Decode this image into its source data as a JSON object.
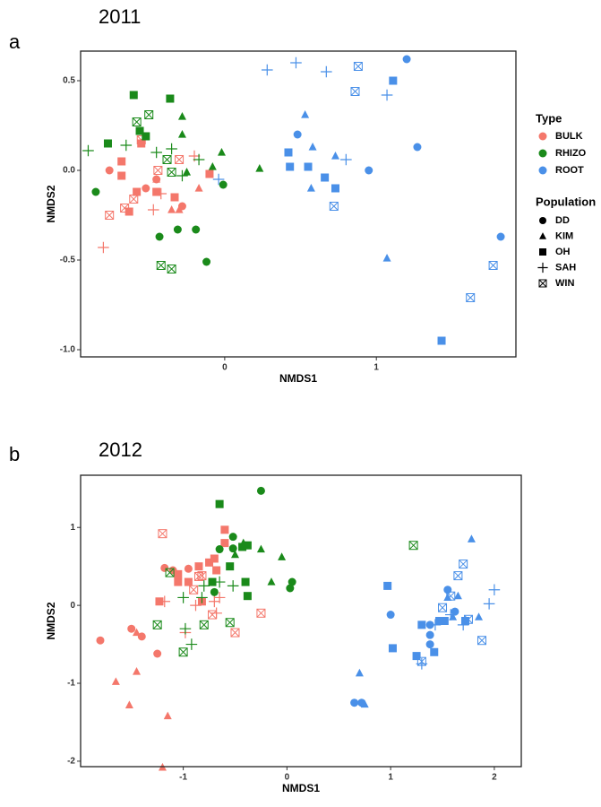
{
  "chart_data": [
    {
      "type": "scatter",
      "panel_label": "a",
      "title": "2011",
      "xlabel": "NMDS1",
      "ylabel": "NMDS2",
      "xlim": [
        -0.95,
        1.92
      ],
      "ylim": [
        -1.04,
        0.665
      ],
      "xticks": [
        0,
        1
      ],
      "yticks": [
        0.5,
        {
          "value": 0,
          "label": "0.0"
        },
        -0.5,
        {
          "value": -1,
          "label": "-1.0"
        }
      ],
      "legend_type": {
        "title": "Type",
        "items": [
          {
            "name": "BULK",
            "color": "#f4776b"
          },
          {
            "name": "RHIZO",
            "color": "#1a8a1a"
          },
          {
            "name": "ROOT",
            "color": "#4a90e8"
          }
        ]
      },
      "legend_population": {
        "title": "Population",
        "items": [
          {
            "name": "DD",
            "marker": "circle"
          },
          {
            "name": "KIM",
            "marker": "triangle"
          },
          {
            "name": "OH",
            "marker": "square"
          },
          {
            "name": "SAH",
            "marker": "plus"
          },
          {
            "name": "WIN",
            "marker": "boxx"
          }
        ]
      },
      "series": [
        {
          "type": "BULK",
          "population": "DD",
          "color": "#f4776b",
          "marker": "circle",
          "x": [
            -0.76,
            -0.45,
            -0.28,
            -0.52
          ],
          "y": [
            0.0,
            -0.05,
            -0.2,
            -0.1
          ]
        },
        {
          "type": "BULK",
          "population": "KIM",
          "color": "#f4776b",
          "marker": "triangle",
          "x": [
            -0.35,
            -0.3,
            -0.17,
            -0.45
          ],
          "y": [
            -0.22,
            -0.22,
            -0.1,
            -0.05
          ]
        },
        {
          "type": "BULK",
          "population": "OH",
          "color": "#f4776b",
          "marker": "square",
          "x": [
            -0.68,
            -0.68,
            -0.63,
            -0.55,
            -0.58,
            -0.45,
            -0.33,
            -0.1
          ],
          "y": [
            0.05,
            -0.03,
            -0.23,
            0.15,
            -0.12,
            -0.12,
            -0.15,
            -0.02
          ]
        },
        {
          "type": "BULK",
          "population": "SAH",
          "color": "#f4776b",
          "marker": "plus",
          "x": [
            -0.8,
            -0.47,
            -0.42,
            -0.2
          ],
          "y": [
            -0.43,
            -0.22,
            -0.13,
            0.08
          ]
        },
        {
          "type": "BULK",
          "population": "WIN",
          "color": "#f4776b",
          "marker": "boxx",
          "x": [
            -0.76,
            -0.66,
            -0.6,
            -0.55,
            -0.44,
            -0.3
          ],
          "y": [
            -0.25,
            -0.21,
            -0.16,
            0.17,
            0.0,
            0.06
          ]
        },
        {
          "type": "RHIZO",
          "population": "DD",
          "color": "#1a8a1a",
          "marker": "circle",
          "x": [
            -0.85,
            -0.43,
            -0.31,
            -0.19,
            -0.12,
            -0.01
          ],
          "y": [
            -0.12,
            -0.37,
            -0.33,
            -0.33,
            -0.51,
            -0.08
          ]
        },
        {
          "type": "RHIZO",
          "population": "KIM",
          "color": "#1a8a1a",
          "marker": "triangle",
          "x": [
            -0.28,
            -0.28,
            -0.08,
            -0.02,
            0.23,
            -0.25
          ],
          "y": [
            0.3,
            0.2,
            0.02,
            0.1,
            0.01,
            -0.01
          ]
        },
        {
          "type": "RHIZO",
          "population": "OH",
          "color": "#1a8a1a",
          "marker": "square",
          "x": [
            -0.77,
            -0.6,
            -0.56,
            -0.52,
            -0.36
          ],
          "y": [
            0.15,
            0.42,
            0.22,
            0.19,
            0.4
          ]
        },
        {
          "type": "RHIZO",
          "population": "SAH",
          "color": "#1a8a1a",
          "marker": "plus",
          "x": [
            -0.9,
            -0.65,
            -0.45,
            -0.35,
            -0.28,
            -0.17
          ],
          "y": [
            0.11,
            0.14,
            0.1,
            0.12,
            -0.03,
            0.06
          ]
        },
        {
          "type": "RHIZO",
          "population": "WIN",
          "color": "#1a8a1a",
          "marker": "boxx",
          "x": [
            -0.58,
            -0.5,
            -0.38,
            -0.35,
            -0.42,
            -0.35
          ],
          "y": [
            0.27,
            0.31,
            0.06,
            -0.01,
            -0.53,
            -0.55
          ]
        },
        {
          "type": "ROOT",
          "population": "DD",
          "color": "#4a90e8",
          "marker": "circle",
          "x": [
            0.48,
            1.2,
            1.27,
            0.95,
            1.82
          ],
          "y": [
            0.2,
            0.62,
            0.13,
            0.0,
            -0.37
          ]
        },
        {
          "type": "ROOT",
          "population": "KIM",
          "color": "#4a90e8",
          "marker": "triangle",
          "x": [
            0.53,
            0.58,
            0.57,
            0.73,
            1.07
          ],
          "y": [
            0.31,
            0.13,
            -0.1,
            0.08,
            -0.49
          ]
        },
        {
          "type": "ROOT",
          "population": "OH",
          "color": "#4a90e8",
          "marker": "square",
          "x": [
            0.42,
            0.43,
            0.55,
            0.66,
            0.73,
            1.11,
            1.43
          ],
          "y": [
            0.1,
            0.02,
            0.02,
            -0.04,
            -0.1,
            0.5,
            -0.95
          ]
        },
        {
          "type": "ROOT",
          "population": "SAH",
          "color": "#4a90e8",
          "marker": "plus",
          "x": [
            0.28,
            0.47,
            0.67,
            0.8,
            1.07,
            -0.04
          ],
          "y": [
            0.56,
            0.6,
            0.55,
            0.06,
            0.42,
            -0.05
          ]
        },
        {
          "type": "ROOT",
          "population": "WIN",
          "color": "#4a90e8",
          "marker": "boxx",
          "x": [
            0.88,
            0.86,
            0.72,
            1.62,
            1.77
          ],
          "y": [
            0.58,
            0.44,
            -0.2,
            -0.71,
            -0.53
          ]
        }
      ]
    },
    {
      "type": "scatter",
      "panel_label": "b",
      "title": "2012",
      "xlabel": "NMDS1",
      "ylabel": "NMDS2",
      "xlim": [
        -1.99,
        2.26
      ],
      "ylim": [
        -2.07,
        1.67
      ],
      "xticks": [
        -1,
        0,
        1,
        2
      ],
      "yticks": [
        1,
        0,
        -1,
        -2
      ],
      "series": [
        {
          "type": "BULK",
          "population": "DD",
          "color": "#f4776b",
          "marker": "circle",
          "x": [
            -1.8,
            -1.5,
            -1.4,
            -1.25,
            -1.18,
            -1.1,
            -0.95
          ],
          "y": [
            -0.45,
            -0.3,
            -0.4,
            -0.62,
            0.48,
            0.45,
            0.47
          ]
        },
        {
          "type": "BULK",
          "population": "KIM",
          "color": "#f4776b",
          "marker": "triangle",
          "x": [
            -1.65,
            -1.52,
            -1.45,
            -1.45,
            -1.2,
            -1.15
          ],
          "y": [
            -0.98,
            -1.28,
            -0.85,
            -0.35,
            -2.08,
            -1.42
          ]
        },
        {
          "type": "BULK",
          "population": "OH",
          "color": "#f4776b",
          "marker": "square",
          "x": [
            -1.23,
            -1.05,
            -1.05,
            -0.95,
            -0.85,
            -0.75,
            -0.7,
            -0.6,
            -0.6,
            -0.82,
            -0.68
          ],
          "y": [
            0.05,
            0.3,
            0.4,
            0.3,
            0.5,
            0.55,
            0.6,
            0.97,
            0.8,
            0.05,
            0.45
          ]
        },
        {
          "type": "BULK",
          "population": "SAH",
          "color": "#f4776b",
          "marker": "plus",
          "x": [
            -1.18,
            -0.98,
            -0.88,
            -0.7,
            -0.65,
            -0.68
          ],
          "y": [
            0.05,
            -0.35,
            0.0,
            0.05,
            0.1,
            -0.1
          ]
        },
        {
          "type": "BULK",
          "population": "WIN",
          "color": "#f4776b",
          "marker": "boxx",
          "x": [
            -1.2,
            -0.9,
            -0.82,
            -0.72,
            -0.5,
            -0.25,
            -0.85
          ],
          "y": [
            0.92,
            0.2,
            0.38,
            -0.12,
            -0.35,
            -0.1,
            0.37
          ]
        },
        {
          "type": "RHIZO",
          "population": "DD",
          "color": "#1a8a1a",
          "marker": "circle",
          "x": [
            -0.65,
            -0.52,
            -0.52,
            -0.25,
            0.03,
            0.05,
            -0.7
          ],
          "y": [
            0.72,
            0.88,
            0.73,
            1.47,
            0.22,
            0.3,
            0.17
          ]
        },
        {
          "type": "RHIZO",
          "population": "KIM",
          "color": "#1a8a1a",
          "marker": "triangle",
          "x": [
            -0.42,
            -0.25,
            -0.05,
            -0.5,
            -0.15
          ],
          "y": [
            0.8,
            0.72,
            0.62,
            0.65,
            0.3
          ]
        },
        {
          "type": "RHIZO",
          "population": "OH",
          "color": "#1a8a1a",
          "marker": "square",
          "x": [
            -0.65,
            -0.55,
            -0.43,
            -0.38,
            -0.72,
            -0.4,
            -0.38
          ],
          "y": [
            1.3,
            0.5,
            0.75,
            0.77,
            0.3,
            0.3,
            0.12
          ]
        },
        {
          "type": "RHIZO",
          "population": "SAH",
          "color": "#1a8a1a",
          "marker": "plus",
          "x": [
            -1.0,
            -0.98,
            -0.92,
            -0.82,
            -0.8,
            -0.52,
            -0.65
          ],
          "y": [
            0.1,
            -0.3,
            -0.5,
            0.1,
            0.25,
            0.25,
            0.3
          ]
        },
        {
          "type": "RHIZO",
          "population": "WIN",
          "color": "#1a8a1a",
          "marker": "boxx",
          "x": [
            -1.25,
            -1.13,
            -1.0,
            -0.8,
            -0.55,
            1.22
          ],
          "y": [
            -0.25,
            0.42,
            -0.6,
            -0.25,
            -0.22,
            0.77
          ]
        },
        {
          "type": "ROOT",
          "population": "DD",
          "color": "#4a90e8",
          "marker": "circle",
          "x": [
            0.72,
            0.65,
            1.0,
            1.38,
            1.38,
            1.38,
            1.55,
            1.62
          ],
          "y": [
            -1.25,
            -1.25,
            -0.12,
            -0.38,
            -0.25,
            -0.5,
            0.2,
            -0.08
          ]
        },
        {
          "type": "ROOT",
          "population": "KIM",
          "color": "#4a90e8",
          "marker": "triangle",
          "x": [
            0.7,
            0.75,
            1.55,
            1.6,
            1.65,
            1.78,
            1.85
          ],
          "y": [
            -0.87,
            -1.27,
            0.1,
            -0.15,
            0.12,
            0.85,
            -0.15
          ]
        },
        {
          "type": "ROOT",
          "population": "OH",
          "color": "#4a90e8",
          "marker": "square",
          "x": [
            0.97,
            1.02,
            1.25,
            1.3,
            1.42,
            1.47,
            1.52,
            1.72
          ],
          "y": [
            0.25,
            -0.55,
            -0.65,
            -0.25,
            -0.6,
            -0.2,
            -0.2,
            -0.2
          ]
        },
        {
          "type": "ROOT",
          "population": "SAH",
          "color": "#4a90e8",
          "marker": "plus",
          "x": [
            1.3,
            1.43,
            1.58,
            1.7,
            1.95,
            2.0
          ],
          "y": [
            -0.75,
            -0.25,
            -0.12,
            -0.25,
            0.02,
            0.2
          ]
        },
        {
          "type": "ROOT",
          "population": "WIN",
          "color": "#4a90e8",
          "marker": "boxx",
          "x": [
            1.3,
            1.5,
            1.58,
            1.65,
            1.7,
            1.75,
            1.88
          ],
          "y": [
            -0.72,
            -0.03,
            0.12,
            0.38,
            0.53,
            -0.18,
            -0.45
          ]
        }
      ]
    }
  ]
}
